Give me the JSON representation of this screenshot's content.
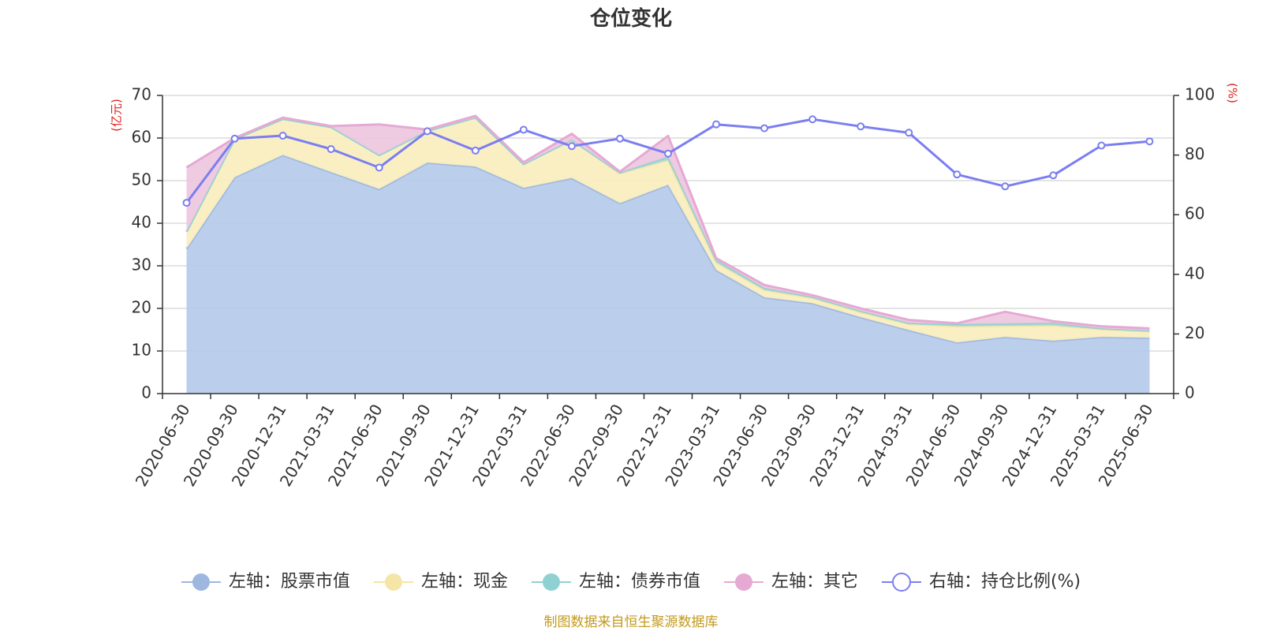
{
  "chart_data": {
    "type": "area",
    "title": "仓位变化",
    "left_unit": "(亿元)",
    "right_unit": "(%)",
    "categories": [
      "2020-06-30",
      "2020-09-30",
      "2020-12-31",
      "2021-03-31",
      "2021-06-30",
      "2021-09-30",
      "2021-12-31",
      "2022-03-31",
      "2022-06-30",
      "2022-09-30",
      "2022-12-31",
      "2023-03-31",
      "2023-06-30",
      "2023-09-30",
      "2023-12-31",
      "2024-03-31",
      "2024-06-30",
      "2024-09-30",
      "2024-12-31",
      "2025-03-31",
      "2025-06-30"
    ],
    "ylim_left": [
      0,
      70
    ],
    "yticks_left": [
      0,
      10,
      20,
      30,
      40,
      50,
      60,
      70
    ],
    "ylim_right": [
      0,
      100
    ],
    "yticks_right": [
      0,
      20,
      40,
      60,
      80,
      100
    ],
    "grid": true,
    "legend_position": "bottom",
    "stacked_series": [
      {
        "name": "左轴：股票市值",
        "axis": "left",
        "color": "#9db7e0",
        "fill": "#b5cbea",
        "values": [
          34,
          50.8,
          56,
          52,
          48,
          54.2,
          53.3,
          48.3,
          50.6,
          44.7,
          49,
          29,
          22.6,
          21.2,
          17.9,
          14.9,
          12,
          13.3,
          12.4,
          13.3,
          13.1
        ]
      },
      {
        "name": "左轴：现金",
        "axis": "left",
        "color": "#f5e6a8",
        "fill": "#faeebe",
        "values": [
          4,
          9,
          8.5,
          10.6,
          8,
          7.5,
          11.5,
          5.6,
          9,
          7,
          5.8,
          1.8,
          1.7,
          1.2,
          1.2,
          1.4,
          3.8,
          2.6,
          3.6,
          1.8,
          1.5
        ]
      },
      {
        "name": "左轴：债券市值",
        "axis": "left",
        "color": "#8fd1d2",
        "fill": "#a6d9d5",
        "values": [
          0,
          0,
          0,
          0,
          0,
          0,
          0,
          0,
          0,
          0.2,
          0.8,
          0.6,
          0.5,
          0.3,
          0.3,
          0.3,
          0.5,
          0.5,
          0.6,
          0.2,
          0.2
        ]
      },
      {
        "name": "左轴：其它",
        "axis": "left",
        "color": "#e6a9d3",
        "fill": "#eec7e0",
        "values": [
          15.1,
          0.2,
          0.3,
          0.2,
          7.2,
          0.3,
          0.4,
          0.4,
          1.4,
          0.2,
          4.9,
          0.4,
          0.7,
          0.4,
          0.6,
          0.7,
          0.2,
          2.8,
          0.4,
          0.5,
          0.5
        ]
      }
    ],
    "line_series": {
      "name": "右轴：持仓比例(%)",
      "axis": "right",
      "color": "#7b7ef0",
      "values": [
        64,
        85.5,
        86.5,
        82,
        75.8,
        88,
        81.5,
        88.5,
        83,
        85.5,
        80.5,
        90.3,
        89,
        92,
        89.6,
        87.5,
        73.5,
        69.5,
        73.2,
        83.2,
        84.6
      ]
    },
    "source_text": "制图数据来自恒生聚源数据库"
  }
}
